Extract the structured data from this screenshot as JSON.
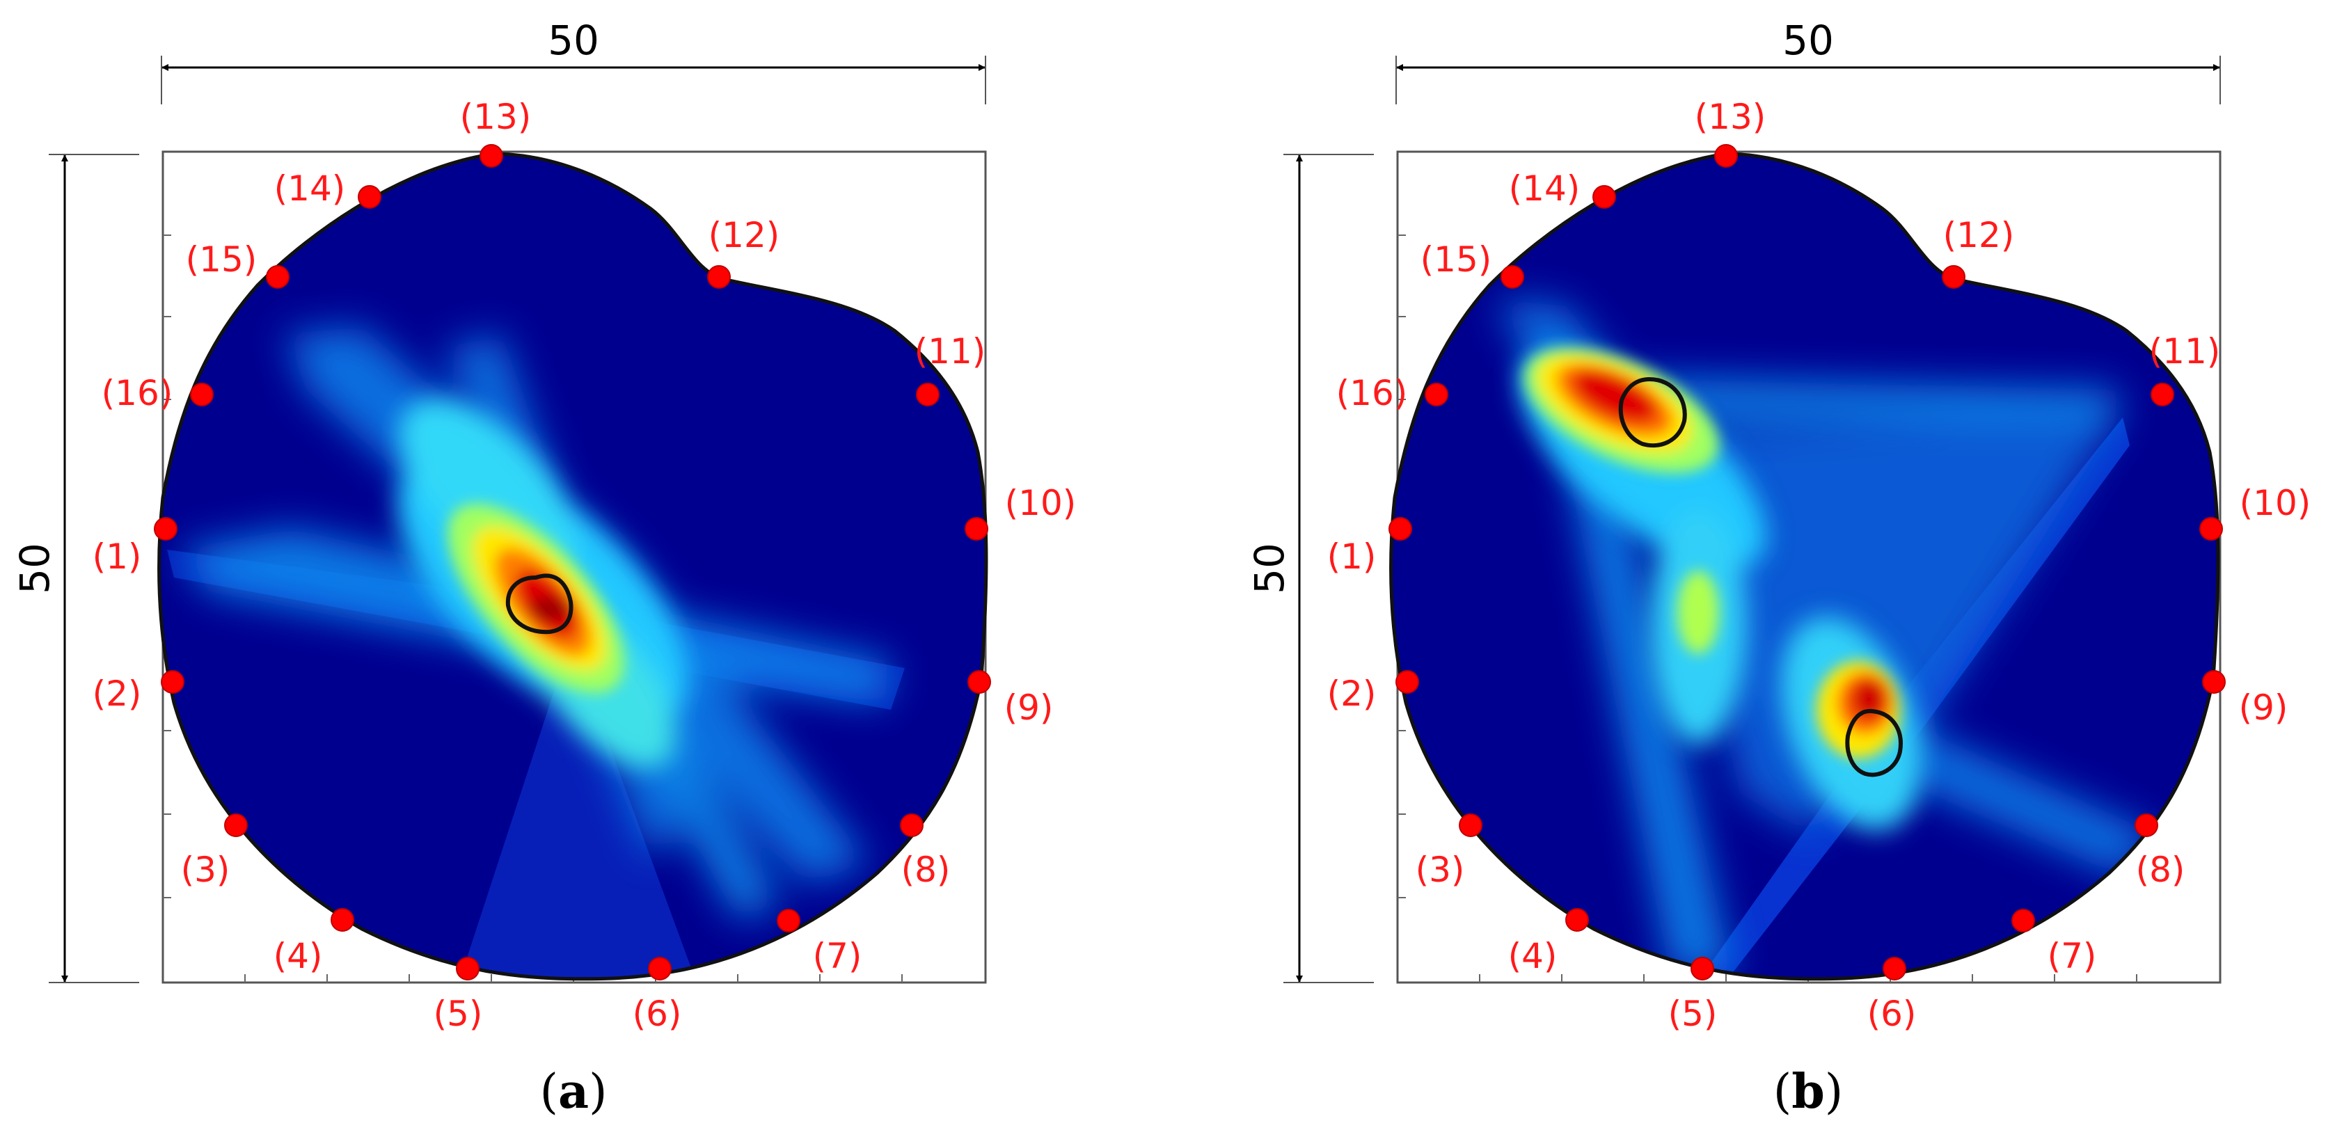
{
  "panels": [
    {
      "id": "a",
      "caption": "a",
      "width_label": "50",
      "height_label": "50",
      "sensors": [
        "(1)",
        "(2)",
        "(3)",
        "(4)",
        "(5)",
        "(6)",
        "(7)",
        "(8)",
        "(9)",
        "(10)",
        "(11)",
        "(12)",
        "(13)",
        "(14)",
        "(15)",
        "(16)"
      ],
      "defects": 1
    },
    {
      "id": "b",
      "caption": "b",
      "width_label": "50",
      "height_label": "50",
      "sensors": [
        "(1)",
        "(2)",
        "(3)",
        "(4)",
        "(5)",
        "(6)",
        "(7)",
        "(8)",
        "(9)",
        "(10)",
        "(11)",
        "(12)",
        "(13)",
        "(14)",
        "(15)",
        "(16)"
      ],
      "defects": 2
    }
  ],
  "colors": {
    "background": "#00008f",
    "sensor_marker": "#ff0000",
    "sensor_label": "#ff1a1a",
    "outline": "#111111",
    "hot": "#cc0000"
  }
}
